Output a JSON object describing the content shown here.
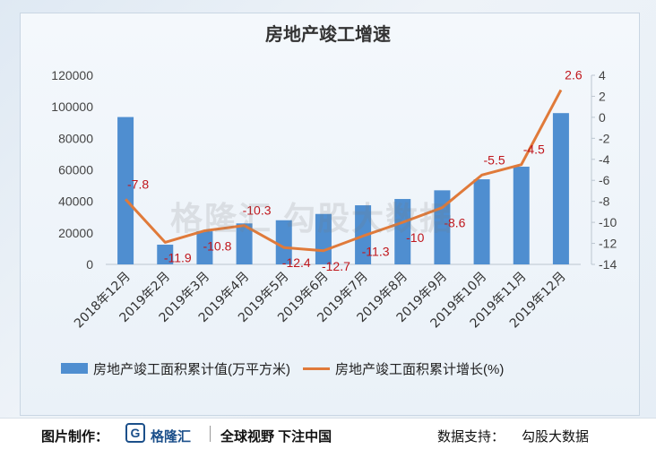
{
  "chart_data": {
    "type": "bar+line",
    "title": "房地产竣工增速",
    "categories": [
      "2018年12月",
      "2019年2月",
      "2019年3月",
      "2019年4月",
      "2019年5月",
      "2019年6月",
      "2019年7月",
      "2019年8月",
      "2019年9月",
      "2019年10月",
      "2019年11月",
      "2019年12月"
    ],
    "series": [
      {
        "name": "房地产竣工面积累计值(万平方米)",
        "type": "bar",
        "axis": "left",
        "values": [
          93500,
          12500,
          21000,
          26000,
          28000,
          32000,
          37500,
          41500,
          47000,
          54000,
          62000,
          96000
        ]
      },
      {
        "name": "房地产竣工面积累计增长(%)",
        "type": "line",
        "axis": "right",
        "values": [
          -7.8,
          -11.9,
          -10.8,
          -10.3,
          -12.4,
          -12.7,
          -11.3,
          -10,
          -8.6,
          -5.5,
          -4.5,
          2.6
        ]
      }
    ],
    "left_axis": {
      "min": 0,
      "max": 120000,
      "ticks": [
        "0",
        "20000",
        "40000",
        "60000",
        "80000",
        "100000",
        "120000"
      ]
    },
    "right_axis": {
      "min": -14,
      "max": 4,
      "ticks": [
        "-14",
        "-12",
        "-10",
        "-8",
        "-6",
        "-4",
        "-2",
        "0",
        "2",
        "4"
      ]
    },
    "colors": {
      "bar": "#4f8ed0",
      "line": "#e07a3a",
      "label": "#c0161c"
    },
    "legend": "bottom",
    "grid": false
  },
  "watermark": "格隆汇  勾股大数据",
  "footer": {
    "made_by_label": "图片制作：",
    "logo_mark": "G",
    "logo_name": "格隆汇",
    "slogan": "全球视野 下注中国",
    "support_label": "数据支持：",
    "support_name": "勾股大数据"
  }
}
